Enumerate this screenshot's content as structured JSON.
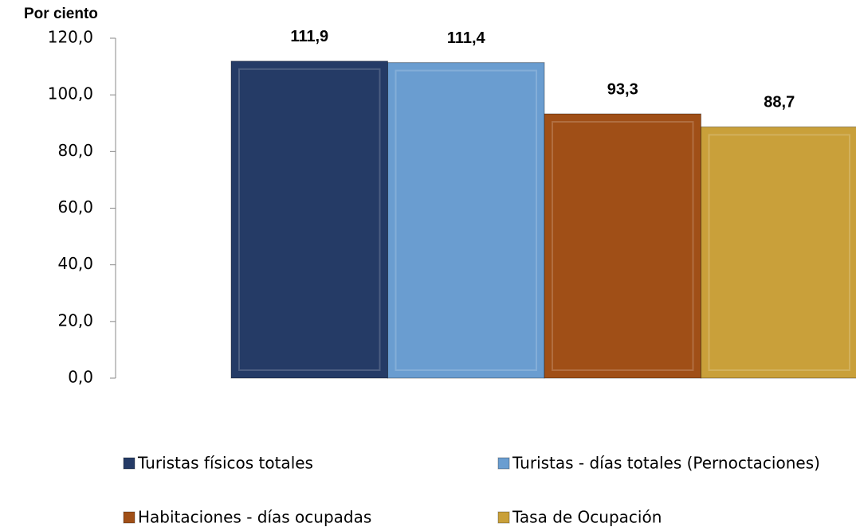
{
  "chart_data": {
    "type": "bar",
    "y_label": "Por ciento",
    "categories": [
      null
    ],
    "series": [
      {
        "name": "Turistas físicos totales",
        "color": "#253b66",
        "values": [
          111.9
        ],
        "value_labels": [
          "111,9"
        ]
      },
      {
        "name": "Turistas - días totales (Pernoctaciones)",
        "color": "#6a9dd0",
        "values": [
          111.4
        ],
        "value_labels": [
          "111,4"
        ]
      },
      {
        "name": "Habitaciones - días ocupadas",
        "color": "#a04f17",
        "values": [
          93.3
        ],
        "value_labels": [
          "93,3"
        ]
      },
      {
        "name": "Tasa de Ocupación",
        "color": "#c9a03a",
        "values": [
          88.7
        ],
        "value_labels": [
          "88,7"
        ]
      }
    ],
    "ylim": [
      0,
      120
    ],
    "yticks": [
      {
        "value": 0,
        "label": "0,0"
      },
      {
        "value": 20,
        "label": "20,0"
      },
      {
        "value": 40,
        "label": "40,0"
      },
      {
        "value": 60,
        "label": "60,0"
      },
      {
        "value": 80,
        "label": "80,0"
      },
      {
        "value": 100,
        "label": "100,0"
      },
      {
        "value": 120,
        "label": "120,0"
      }
    ],
    "legend": "bottom"
  }
}
